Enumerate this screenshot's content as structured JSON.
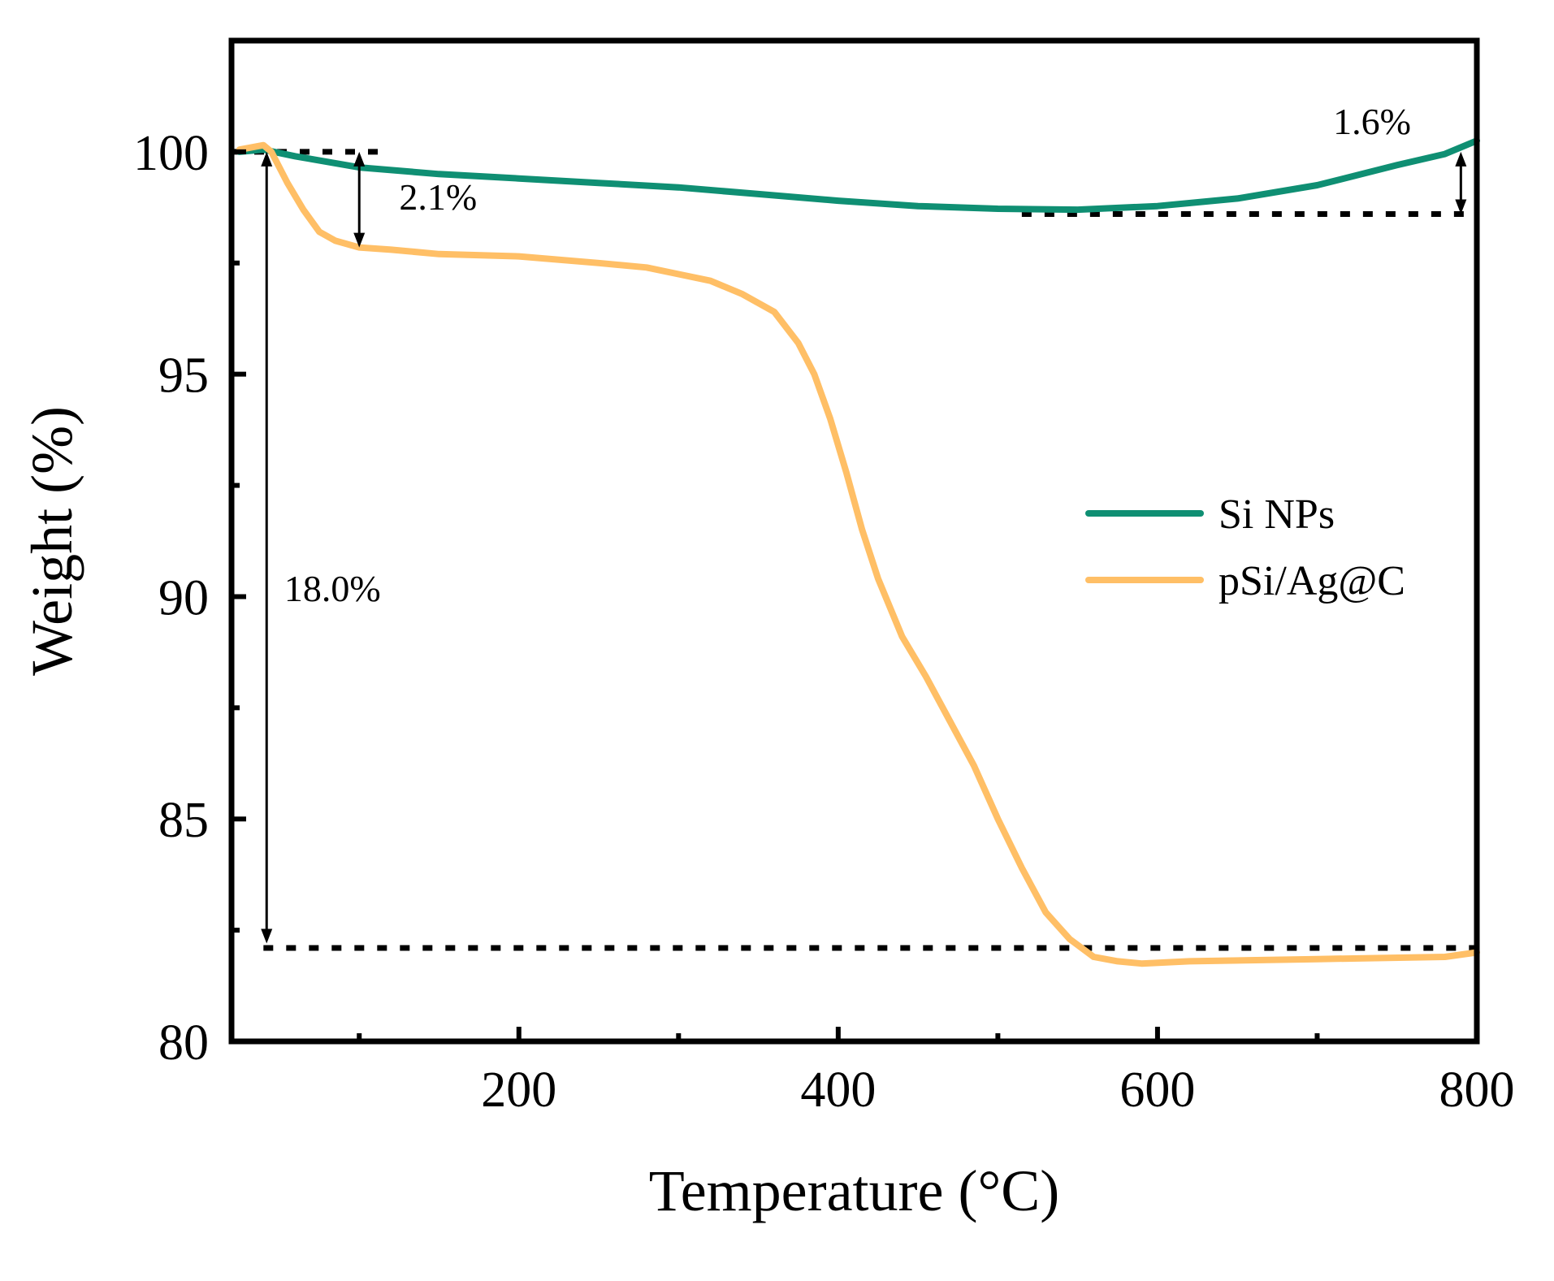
{
  "chart_data": {
    "type": "line",
    "title": "",
    "xlabel": "Temperature (°C)",
    "ylabel": "Weight (%)",
    "xlim": [
      20,
      800
    ],
    "ylim": [
      80,
      102.5
    ],
    "x_ticks": [
      200,
      400,
      600,
      800
    ],
    "x_minor_ticks": [
      100,
      300,
      500,
      700
    ],
    "y_ticks": [
      80,
      85,
      90,
      95,
      100
    ],
    "y_minor_ticks": [
      82.5,
      87.5,
      92.5,
      97.5
    ],
    "grid": false,
    "legend_position": "center-right",
    "series": [
      {
        "name": "Si NPs",
        "color": "#0f8f73",
        "x": [
          25,
          40,
          60,
          100,
          150,
          200,
          250,
          300,
          350,
          400,
          450,
          500,
          550,
          600,
          650,
          700,
          750,
          780,
          800
        ],
        "y": [
          100.0,
          100.05,
          99.9,
          99.65,
          99.5,
          99.4,
          99.3,
          99.2,
          99.05,
          98.9,
          98.78,
          98.72,
          98.7,
          98.78,
          98.95,
          99.25,
          99.7,
          99.95,
          100.25
        ]
      },
      {
        "name": "pSi/Ag@C",
        "color": "#ffbf66",
        "x": [
          25,
          40,
          45,
          55,
          65,
          75,
          85,
          100,
          120,
          150,
          200,
          250,
          280,
          300,
          320,
          340,
          360,
          375,
          385,
          395,
          405,
          415,
          425,
          440,
          455,
          470,
          485,
          500,
          515,
          530,
          545,
          560,
          575,
          590,
          620,
          700,
          780,
          800
        ],
        "y": [
          100.05,
          100.15,
          100.0,
          99.3,
          98.7,
          98.2,
          98.0,
          97.85,
          97.8,
          97.7,
          97.65,
          97.5,
          97.4,
          97.25,
          97.1,
          96.8,
          96.4,
          95.7,
          95.0,
          94.0,
          92.8,
          91.5,
          90.4,
          89.1,
          88.2,
          87.2,
          86.2,
          85.0,
          83.9,
          82.9,
          82.3,
          81.9,
          81.8,
          81.75,
          81.8,
          81.85,
          81.9,
          82.0
        ]
      }
    ],
    "reference_lines": [
      {
        "label": "100% baseline",
        "y": 100.0,
        "x_from": 20,
        "x_to": 115
      },
      {
        "label": "Si NPs minimum",
        "y": 98.6,
        "x_from": 515,
        "x_to": 800
      },
      {
        "label": "pSi/Ag@C residue",
        "y": 82.1,
        "x_from": 40,
        "x_to": 800
      }
    ],
    "arrows": [
      {
        "x": 100,
        "y_from": 100.0,
        "y_to": 97.85
      },
      {
        "x": 42,
        "y_from": 100.0,
        "y_to": 82.2
      },
      {
        "x": 790,
        "y_from": 100.0,
        "y_to": 98.6
      }
    ],
    "annotations": [
      {
        "text": "2.1%",
        "x": 125,
        "y": 98.7
      },
      {
        "text": "18.0%",
        "x": 53,
        "y": 89.9
      },
      {
        "text": "1.6%",
        "x": 710,
        "y": 100.4
      }
    ]
  }
}
